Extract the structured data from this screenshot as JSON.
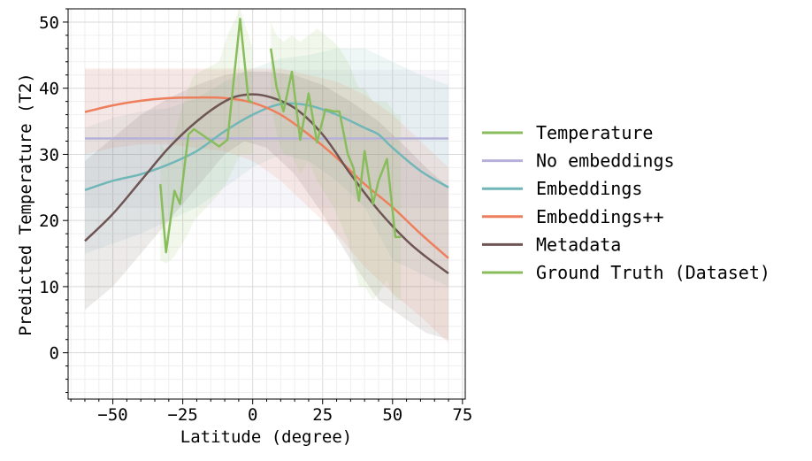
{
  "chart_data": {
    "type": "line",
    "xlabel": "Latitude (degree)",
    "ylabel": "Predicted Temperature (T2)",
    "xlim": [
      -66,
      76
    ],
    "ylim": [
      -7,
      52
    ],
    "xticks": [
      -50,
      -25,
      0,
      25,
      50,
      75
    ],
    "yticks": [
      0,
      10,
      20,
      30,
      40,
      50
    ],
    "grid": true,
    "legend_position": "right",
    "series": [
      {
        "name": "No embeddings",
        "color": "#b6b1d9",
        "x": [
          -60,
          70
        ],
        "y": [
          32.4,
          32.4
        ],
        "band_lower": [
          22.0,
          22.0
        ],
        "band_upper": [
          42.8,
          42.8
        ]
      },
      {
        "name": "Embeddings",
        "color": "#71b7b8",
        "x": [
          -60,
          -50,
          -40,
          -30,
          -20,
          -10,
          0,
          10,
          20,
          30,
          40,
          45,
          50,
          60,
          70
        ],
        "y": [
          24.6,
          26.0,
          27.0,
          28.5,
          30.5,
          33.5,
          36.0,
          37.6,
          37.4,
          36.0,
          34.0,
          33.0,
          31.0,
          27.5,
          25.0
        ],
        "band_lower": [
          15.0,
          16.5,
          18.0,
          20.0,
          22.0,
          25.0,
          28.0,
          30.0,
          29.0,
          26.0,
          22.0,
          18.0,
          14.0,
          12.0,
          10.0
        ],
        "band_upper": [
          34.0,
          35.5,
          36.5,
          37.0,
          38.5,
          41.0,
          43.0,
          44.5,
          45.0,
          46.0,
          46.0,
          45.0,
          44.0,
          42.0,
          40.5
        ]
      },
      {
        "name": "Embeddings++",
        "color": "#ee7f5d",
        "x": [
          -60,
          -50,
          -40,
          -30,
          -20,
          -10,
          0,
          10,
          20,
          30,
          40,
          50,
          60,
          70
        ],
        "y": [
          36.4,
          37.4,
          38.1,
          38.5,
          38.6,
          38.5,
          37.8,
          36.0,
          33.0,
          29.5,
          25.5,
          22.0,
          18.0,
          14.3
        ],
        "band_lower": [
          30.0,
          31.0,
          31.5,
          31.5,
          31.0,
          30.5,
          29.0,
          26.0,
          22.0,
          18.0,
          13.0,
          9.0,
          5.5,
          1.5
        ],
        "band_upper": [
          43.0,
          43.0,
          43.0,
          43.0,
          43.0,
          43.0,
          43.0,
          43.0,
          42.0,
          41.0,
          39.0,
          36.0,
          32.0,
          28.0
        ]
      },
      {
        "name": "Metadata",
        "color": "#6e5554",
        "x": [
          -60,
          -50,
          -40,
          -30,
          -20,
          -10,
          -3,
          5,
          15,
          25,
          35,
          45,
          55,
          62,
          70
        ],
        "y": [
          16.9,
          21.0,
          26.0,
          31.0,
          35.0,
          38.0,
          39.0,
          38.8,
          37.0,
          33.0,
          27.0,
          21.5,
          17.0,
          14.5,
          12.0
        ],
        "band_lower": [
          6.5,
          10.0,
          15.0,
          20.0,
          25.0,
          30.0,
          32.0,
          31.0,
          27.0,
          21.0,
          14.0,
          8.0,
          5.0,
          3.0,
          2.0
        ],
        "band_upper": [
          29.0,
          32.5,
          36.0,
          38.5,
          40.5,
          42.0,
          42.5,
          42.5,
          42.0,
          40.5,
          38.0,
          35.0,
          31.0,
          28.0,
          25.0
        ]
      },
      {
        "name": "Temperature",
        "color": "#89bd5c",
        "x": [
          -33,
          -31,
          -28,
          -26,
          -23,
          -21,
          -12,
          -9,
          -4.5,
          -1.5,
          0
        ],
        "y": [
          25.5,
          15.2,
          24.5,
          22.5,
          33.0,
          33.8,
          31.2,
          32.2,
          50.5,
          38.2,
          37.8
        ],
        "band_lower": [
          14.0,
          13.5,
          14.5,
          16.0,
          18.0,
          20.0,
          24.0,
          26.0,
          30.0,
          30.0,
          30.0
        ],
        "band_upper": [
          32.0,
          30.0,
          33.0,
          36.0,
          40.0,
          42.0,
          44.0,
          48.0,
          52.0,
          48.0,
          46.0
        ]
      },
      {
        "name": "Ground Truth (Dataset)",
        "color": "#89bd5c",
        "x": [
          6.5,
          8.5,
          11,
          14,
          17,
          20,
          23,
          26,
          29,
          31,
          34,
          36,
          38,
          40,
          43,
          45,
          48,
          51,
          53
        ],
        "y": [
          46.0,
          40.2,
          36.5,
          42.5,
          32.2,
          39.2,
          31.8,
          36.8,
          36.5,
          36.5,
          30.0,
          28.0,
          23.0,
          30.5,
          22.5,
          26.0,
          29.3,
          17.5,
          17.5
        ],
        "band_lower": [
          38.0,
          33.0,
          30.0,
          30.0,
          27.0,
          29.0,
          26.0,
          24.0,
          22.0,
          20.0,
          17.0,
          14.0,
          10.0,
          10.0,
          8.0,
          9.0,
          11.0,
          8.0,
          8.0
        ],
        "band_upper": [
          50.0,
          48.0,
          47.0,
          48.0,
          47.0,
          48.0,
          49.0,
          48.0,
          47.0,
          46.0,
          44.0,
          42.0,
          40.0,
          40.0,
          38.0,
          38.0,
          38.0,
          36.0,
          36.0
        ]
      }
    ],
    "legend_entries": [
      {
        "label": "Temperature",
        "color": "#89bd5c"
      },
      {
        "label": "No embeddings",
        "color": "#b6b1d9"
      },
      {
        "label": "Embeddings",
        "color": "#71b7b8"
      },
      {
        "label": "Embeddings++",
        "color": "#ee7f5d"
      },
      {
        "label": "Metadata",
        "color": "#6e5554"
      },
      {
        "label": "Ground Truth (Dataset)",
        "color": "#89bd5c"
      }
    ]
  }
}
